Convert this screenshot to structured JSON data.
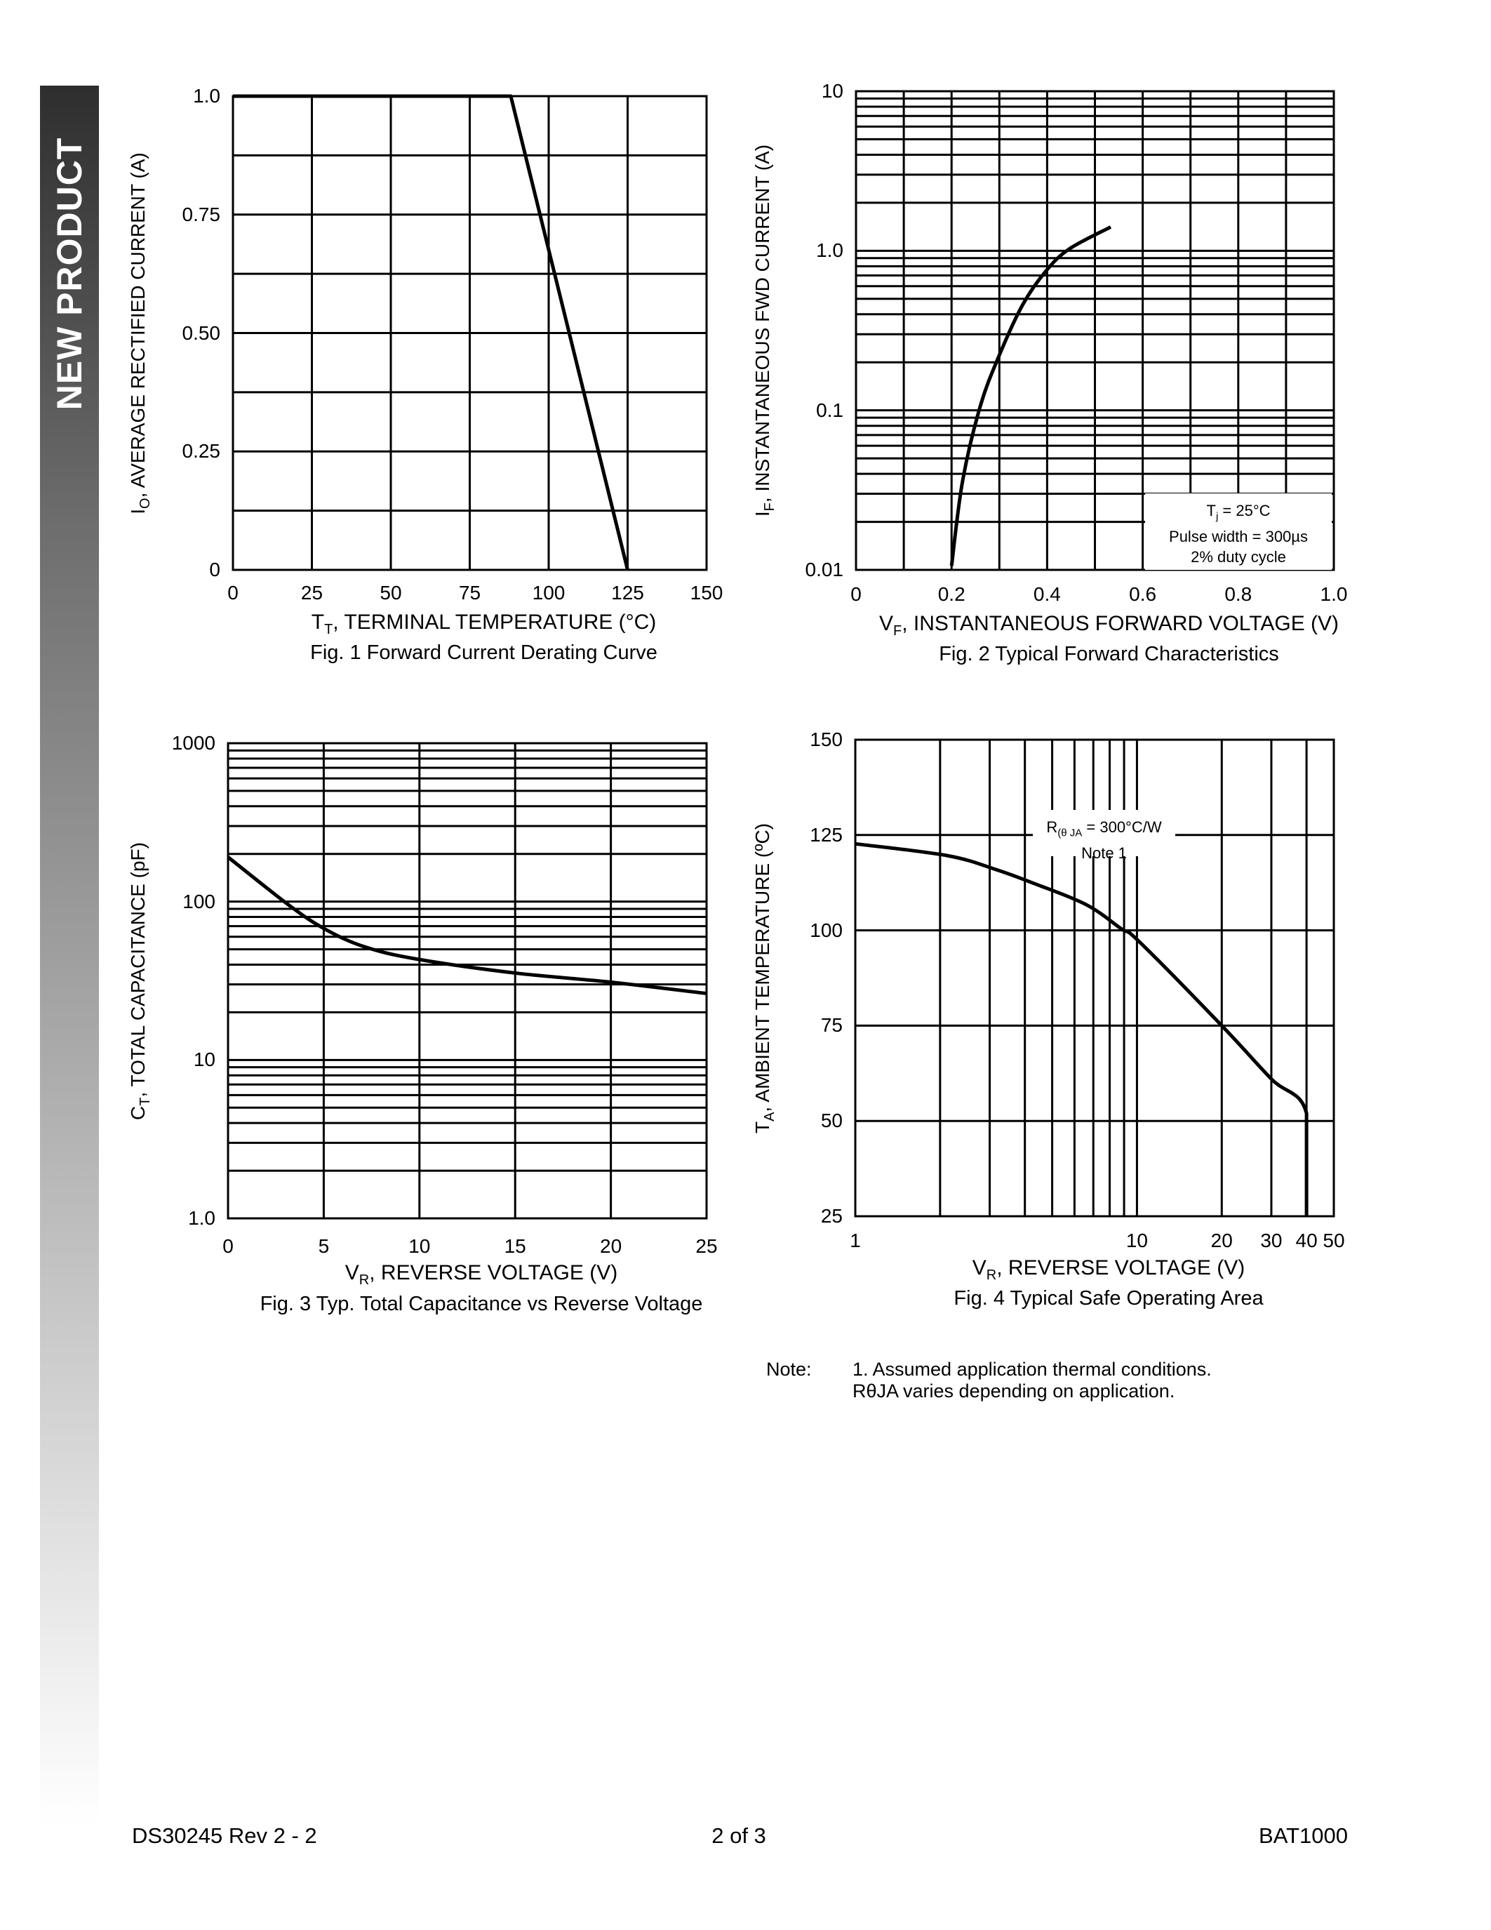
{
  "sidebar": {
    "label": "NEW PRODUCT",
    "gradient_top": "#2e2e2e",
    "gradient_bottom": "#ffffff"
  },
  "footer": {
    "doc_id": "DS30245  Rev 2 - 2",
    "page": "2 of 3",
    "part": "BAT1000"
  },
  "note": {
    "label": "Note:",
    "line1": "1. Assumed application thermal conditions.",
    "line2": "RθJA varies depending on application."
  },
  "chart_data": [
    {
      "type": "line",
      "caption": "Fig. 1  Forward Current Derating Curve",
      "xlabel": {
        "base": "T",
        "sub": "T",
        "rest": ", TERMINAL TEMPERATURE (°C)"
      },
      "ylabel": {
        "base": "I",
        "sub": "O",
        "rest": ", AVERAGE RECTIFIED CURRENT (A)"
      },
      "xscale": "linear",
      "yscale": "linear",
      "xlim": [
        0,
        150
      ],
      "ylim": [
        0,
        1.0
      ],
      "x_ticks": [
        0,
        25,
        50,
        75,
        100,
        125,
        150
      ],
      "x_tick_labels": [
        "0",
        "25",
        "50",
        "75",
        "100",
        "125",
        "150"
      ],
      "y_ticks": [
        0,
        0.25,
        0.5,
        0.75,
        1.0
      ],
      "y_tick_labels": [
        "0",
        "0.25",
        "0.50",
        "0.75",
        "1.0"
      ],
      "y_grid": [
        0,
        0.125,
        0.25,
        0.375,
        0.5,
        0.625,
        0.75,
        0.875,
        1.0
      ],
      "grid": true,
      "series": [
        {
          "x": [
            0,
            88,
            125
          ],
          "y": [
            1.0,
            1.0,
            0
          ]
        }
      ]
    },
    {
      "type": "line",
      "caption": "Fig. 2  Typical Forward Characteristics",
      "xlabel": {
        "base": "V",
        "sub": "F",
        "rest": ", INSTANTANEOUS FORWARD VOLTAGE (V)"
      },
      "ylabel": {
        "base": "I",
        "sub": "F",
        "rest": ", INSTANTANEOUS FWD CURRENT (A)"
      },
      "xscale": "linear",
      "yscale": "log",
      "xlim": [
        0,
        1.0
      ],
      "ylim": [
        0.01,
        10
      ],
      "x_ticks": [
        0,
        0.2,
        0.4,
        0.6,
        0.8,
        1.0
      ],
      "x_tick_labels": [
        "0",
        "0.2",
        "0.4",
        "0.6",
        "0.8",
        "1.0"
      ],
      "x_grid": [
        0,
        0.1,
        0.2,
        0.3,
        0.4,
        0.5,
        0.6,
        0.7,
        0.8,
        0.9,
        1.0
      ],
      "y_ticks": [
        0.01,
        0.1,
        1,
        10
      ],
      "y_tick_labels": [
        "0.01",
        "0.1",
        "1.0",
        "10"
      ],
      "grid": true,
      "annotation": {
        "line1_base": "T",
        "line1_sub": "j",
        "line1_rest": " = 25°C",
        "line2": "Pulse width = 300µs",
        "line3": "2% duty cycle"
      },
      "series": [
        {
          "x": [
            0.2,
            0.223,
            0.26,
            0.3,
            0.349,
            0.398,
            0.447,
            0.533
          ],
          "y": [
            0.0106,
            0.036,
            0.106,
            0.222,
            0.46,
            0.75,
            1.03,
            1.41
          ]
        }
      ]
    },
    {
      "type": "line",
      "caption": "Fig. 3  Typ. Total Capacitance vs Reverse Voltage",
      "xlabel": {
        "base": "V",
        "sub": "R",
        "rest": ", REVERSE VOLTAGE (V)"
      },
      "ylabel": {
        "base": "C",
        "sub": "T",
        "rest": ", TOTAL CAPACITANCE (pF)"
      },
      "xscale": "linear",
      "yscale": "log",
      "xlim": [
        0,
        25
      ],
      "ylim": [
        1,
        1000
      ],
      "x_ticks": [
        0,
        5,
        10,
        15,
        20,
        25
      ],
      "x_tick_labels": [
        "0",
        "5",
        "10",
        "15",
        "20",
        "25"
      ],
      "x_grid": [
        0,
        5,
        10,
        15,
        20,
        25
      ],
      "y_ticks": [
        1,
        10,
        100,
        1000
      ],
      "y_tick_labels": [
        "1.0",
        "10",
        "100",
        "1000"
      ],
      "grid": true,
      "series": [
        {
          "x": [
            0,
            3.2,
            5.07,
            7.1,
            9.8,
            15,
            19.9,
            25
          ],
          "y": [
            191,
            94.6,
            67,
            52,
            43.5,
            35.4,
            31.1,
            26.3
          ]
        }
      ]
    },
    {
      "type": "line",
      "caption": "Fig. 4  Typical Safe Operating Area",
      "xlabel": {
        "base": "V",
        "sub": "R",
        "rest": ", REVERSE VOLTAGE (V)"
      },
      "ylabel": {
        "base": "T",
        "sub": "A",
        "rest": ", AMBIENT TEMPERATURE (ºC)"
      },
      "xscale": "log",
      "yscale": "linear",
      "xlim": [
        1,
        50
      ],
      "ylim": [
        25,
        150
      ],
      "x_ticks": [
        1,
        10,
        20,
        30,
        40,
        50
      ],
      "x_tick_labels": [
        "1",
        "10",
        "20",
        "30",
        "40",
        "50"
      ],
      "x_grid": [
        1,
        2,
        3,
        4,
        5,
        6,
        7,
        8,
        9,
        10,
        20,
        30,
        40,
        50
      ],
      "y_ticks": [
        25,
        50,
        75,
        100,
        125,
        150
      ],
      "y_tick_labels": [
        "25",
        "50",
        "75",
        "100",
        "125",
        "150"
      ],
      "y_grid": [
        25,
        50,
        75,
        100,
        125,
        150
      ],
      "grid": true,
      "annotation": {
        "line1_base": "R",
        "line1_sub": "(θ JA",
        "line1_rest": " = 300°C/W",
        "line2": "Note 1"
      },
      "series": [
        {
          "x": [
            1,
            2.12,
            3.17,
            4.31,
            6.58,
            8.8,
            10.2,
            20,
            30,
            40,
            40
          ],
          "y": [
            122.7,
            119.6,
            115.9,
            112.3,
            106.8,
            100.4,
            97,
            75,
            61,
            52,
            25
          ]
        }
      ]
    }
  ]
}
